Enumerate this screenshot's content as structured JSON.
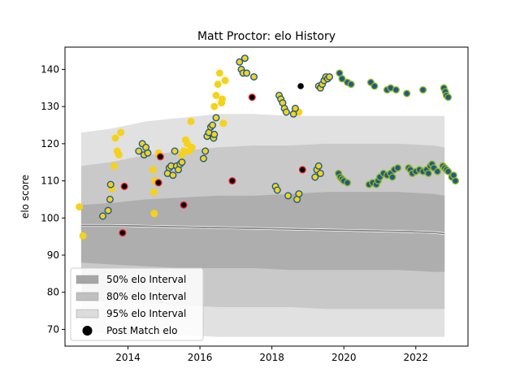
{
  "chart_data": {
    "type": "scatter",
    "title": "Matt Proctor: elo History",
    "xlabel": "",
    "ylabel": "elo score",
    "xlim": [
      2012.25,
      2023.45
    ],
    "ylim": [
      65.5,
      146
    ],
    "x_ticks": [
      2014,
      2016,
      2018,
      2020,
      2022
    ],
    "y_ticks": [
      70,
      80,
      90,
      100,
      110,
      120,
      130,
      140
    ],
    "grid": false,
    "legend_position": "lower-left",
    "legend": [
      {
        "label": "50% elo Interval",
        "kind": "patch",
        "color": "#a6a6a6"
      },
      {
        "label": "80% elo Interval",
        "kind": "patch",
        "color": "#c0c0c0"
      },
      {
        "label": "95% elo Interval",
        "kind": "patch",
        "color": "#dcdcdc"
      },
      {
        "label": "Post Match elo",
        "kind": "marker",
        "color": "#000000"
      }
    ],
    "bands": {
      "x": [
        2012.7,
        2013.5,
        2014.5,
        2015.5,
        2016.5,
        2017.5,
        2018.5,
        2019.5,
        2020.5,
        2021.5,
        2022.5,
        2022.8
      ],
      "i95_upper": [
        123,
        124,
        126,
        127,
        128,
        128,
        127.5,
        127.5,
        127.5,
        127.5,
        127.5,
        127.5
      ],
      "i80_upper": [
        114,
        115,
        117,
        118,
        119,
        119.5,
        119.5,
        120,
        120,
        120,
        119.5,
        119
      ],
      "i50_upper": [
        103.5,
        104,
        105,
        105.5,
        106,
        106,
        106.5,
        107,
        107,
        107,
        106.5,
        106
      ],
      "i50_lower": [
        88,
        87.5,
        87,
        86.5,
        86.5,
        86.5,
        86,
        86,
        86,
        86,
        85.5,
        85.5
      ],
      "i80_lower": [
        78,
        77.5,
        77,
        76.5,
        76,
        76,
        76,
        75.5,
        75.5,
        75.5,
        75.5,
        75.5
      ],
      "i95_lower": [
        69,
        69,
        68.5,
        68.5,
        68,
        68,
        68,
        68,
        68,
        68,
        68,
        68
      ],
      "mean_line": [
        98,
        98,
        97.8,
        97.6,
        97.4,
        97.2,
        97,
        96.8,
        96.6,
        96.4,
        96.1,
        95.8
      ]
    },
    "marker_styles": {
      "yellow-edge": {
        "fill": "#f5d21b",
        "edge": "#f5d21b"
      },
      "blue-edge": {
        "fill": "#f5d21b",
        "edge": "#1f5a8a"
      },
      "green-edge": {
        "fill": "#1f5a8a",
        "edge": "#8fb51e"
      },
      "red-edge": {
        "fill": "#000000",
        "edge": "#e0202a"
      },
      "post-match": {
        "fill": "#000000",
        "edge": "#ffffff"
      }
    },
    "series": [
      {
        "style": "yellow-edge",
        "points": [
          [
            2012.65,
            103
          ],
          [
            2012.75,
            95.2
          ],
          [
            2013.55,
            108
          ],
          [
            2013.62,
            114
          ],
          [
            2013.65,
            121.5
          ],
          [
            2013.7,
            118
          ],
          [
            2013.75,
            117
          ],
          [
            2013.8,
            123
          ],
          [
            2014.7,
            113
          ],
          [
            2014.75,
            110
          ],
          [
            2014.72,
            107
          ],
          [
            2014.73,
            101.2
          ],
          [
            2014.85,
            117.5
          ],
          [
            2015.5,
            117
          ],
          [
            2015.55,
            118
          ],
          [
            2015.6,
            121
          ],
          [
            2015.65,
            120
          ],
          [
            2015.7,
            118
          ],
          [
            2015.75,
            126
          ],
          [
            2015.78,
            119
          ],
          [
            2016.4,
            130
          ],
          [
            2016.45,
            133
          ],
          [
            2016.5,
            136
          ],
          [
            2016.55,
            139
          ],
          [
            2016.6,
            131
          ],
          [
            2016.62,
            132
          ],
          [
            2016.7,
            137
          ],
          [
            2016.65,
            125.5
          ],
          [
            2018.75,
            128.5
          ]
        ]
      },
      {
        "style": "blue-edge",
        "points": [
          [
            2013.3,
            100.5
          ],
          [
            2013.45,
            102
          ],
          [
            2013.5,
            105
          ],
          [
            2013.52,
            109
          ],
          [
            2014.3,
            118
          ],
          [
            2014.4,
            120
          ],
          [
            2014.45,
            117
          ],
          [
            2014.5,
            119
          ],
          [
            2014.55,
            117.5
          ],
          [
            2015.1,
            112
          ],
          [
            2015.15,
            113.5
          ],
          [
            2015.2,
            114
          ],
          [
            2015.25,
            111.5
          ],
          [
            2015.3,
            118
          ],
          [
            2015.35,
            114
          ],
          [
            2015.4,
            113
          ],
          [
            2015.45,
            114.5
          ],
          [
            2015.5,
            115
          ],
          [
            2016.1,
            116
          ],
          [
            2016.15,
            118
          ],
          [
            2016.2,
            122
          ],
          [
            2016.25,
            123
          ],
          [
            2016.3,
            124.5
          ],
          [
            2016.35,
            125
          ],
          [
            2016.38,
            121.5
          ],
          [
            2016.4,
            122.5
          ],
          [
            2016.45,
            127
          ],
          [
            2017.1,
            142
          ],
          [
            2017.15,
            140
          ],
          [
            2017.2,
            139
          ],
          [
            2017.25,
            143
          ],
          [
            2017.3,
            139
          ],
          [
            2017.5,
            138
          ],
          [
            2018.1,
            108.5
          ],
          [
            2018.15,
            107.5
          ],
          [
            2018.2,
            133
          ],
          [
            2018.25,
            132
          ],
          [
            2018.3,
            131
          ],
          [
            2018.35,
            129.5
          ],
          [
            2018.4,
            128.5
          ],
          [
            2018.45,
            106
          ],
          [
            2018.6,
            128
          ],
          [
            2018.65,
            129.5
          ],
          [
            2018.7,
            105
          ],
          [
            2018.75,
            106.5
          ],
          [
            2019.2,
            111
          ],
          [
            2019.25,
            113
          ],
          [
            2019.3,
            114
          ],
          [
            2019.35,
            112
          ],
          [
            2019.3,
            135.5
          ],
          [
            2019.35,
            135
          ],
          [
            2019.4,
            136
          ],
          [
            2019.45,
            137
          ],
          [
            2019.5,
            138
          ],
          [
            2019.55,
            137.5
          ],
          [
            2019.6,
            138
          ]
        ]
      },
      {
        "style": "green-edge",
        "points": [
          [
            2019.85,
            112
          ],
          [
            2019.9,
            111
          ],
          [
            2019.95,
            110.5
          ],
          [
            2020.0,
            110
          ],
          [
            2020.1,
            109.5
          ],
          [
            2019.88,
            139
          ],
          [
            2019.95,
            137.5
          ],
          [
            2020.1,
            136.5
          ],
          [
            2020.2,
            136
          ],
          [
            2020.7,
            109
          ],
          [
            2020.8,
            109.5
          ],
          [
            2020.9,
            109
          ],
          [
            2020.95,
            110
          ],
          [
            2021.0,
            111
          ],
          [
            2021.1,
            112
          ],
          [
            2021.2,
            111.5
          ],
          [
            2021.3,
            112
          ],
          [
            2021.35,
            111
          ],
          [
            2021.4,
            113
          ],
          [
            2021.5,
            113.5
          ],
          [
            2020.75,
            136.5
          ],
          [
            2020.85,
            135.5
          ],
          [
            2021.2,
            134.5
          ],
          [
            2021.3,
            135
          ],
          [
            2021.45,
            134.5
          ],
          [
            2021.75,
            133.5
          ],
          [
            2021.8,
            113.5
          ],
          [
            2021.85,
            113
          ],
          [
            2021.9,
            112
          ],
          [
            2022.0,
            112.5
          ],
          [
            2022.1,
            113
          ],
          [
            2022.2,
            112.5
          ],
          [
            2022.3,
            113
          ],
          [
            2022.35,
            112
          ],
          [
            2022.4,
            114
          ],
          [
            2022.45,
            114.5
          ],
          [
            2022.5,
            113.5
          ],
          [
            2022.6,
            112.5
          ],
          [
            2022.2,
            134.5
          ],
          [
            2022.75,
            114
          ],
          [
            2022.8,
            113.5
          ],
          [
            2022.85,
            113
          ],
          [
            2022.9,
            112.5
          ],
          [
            2023.0,
            111
          ],
          [
            2023.05,
            111.5
          ],
          [
            2023.1,
            110
          ],
          [
            2022.78,
            135
          ],
          [
            2022.82,
            134
          ],
          [
            2022.85,
            133
          ],
          [
            2022.9,
            132.5
          ]
        ]
      },
      {
        "style": "red-edge",
        "points": [
          [
            2013.85,
            96
          ],
          [
            2013.9,
            108.5
          ],
          [
            2014.85,
            109.5
          ],
          [
            2014.9,
            116.5
          ],
          [
            2015.55,
            103.5
          ],
          [
            2016.9,
            110
          ],
          [
            2017.45,
            132.5
          ],
          [
            2018.85,
            113
          ]
        ]
      },
      {
        "style": "post-match",
        "points": [
          [
            2018.8,
            135.5
          ]
        ]
      }
    ]
  }
}
